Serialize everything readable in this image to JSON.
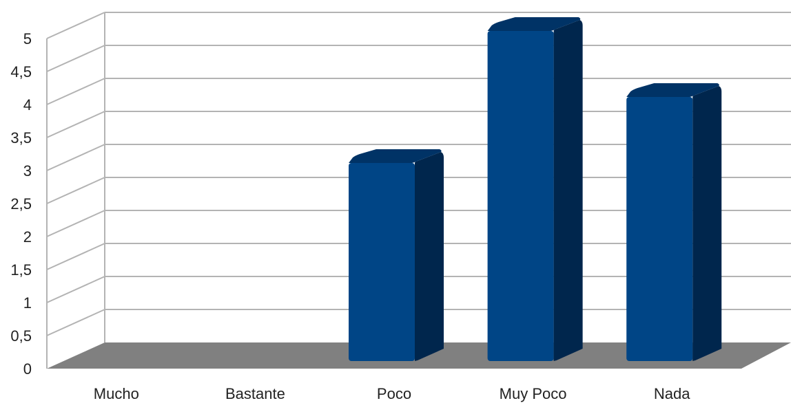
{
  "chart_data": {
    "type": "bar",
    "title": "",
    "xlabel": "",
    "ylabel": "",
    "categories": [
      "Mucho",
      "Bastante",
      "Poco",
      "Muy Poco",
      "Nada"
    ],
    "values": [
      0,
      0,
      3,
      5,
      4
    ],
    "ylim": [
      0,
      5
    ],
    "ytick_values": [
      0,
      0.5,
      1,
      1.5,
      2,
      2.5,
      3,
      3.5,
      4,
      4.5,
      5
    ],
    "ytick_labels": [
      "0",
      "0,5",
      "1",
      "1,5",
      "2",
      "2,5",
      "3",
      "3,5",
      "4",
      "4,5",
      "5"
    ],
    "grid": true,
    "legend": "none",
    "style": "3d",
    "colors": {
      "bar_front": "#004586",
      "bar_side": "#00264d",
      "bar_top": "#003366",
      "floor": "#808080",
      "grid": "#b3b3b3"
    }
  }
}
